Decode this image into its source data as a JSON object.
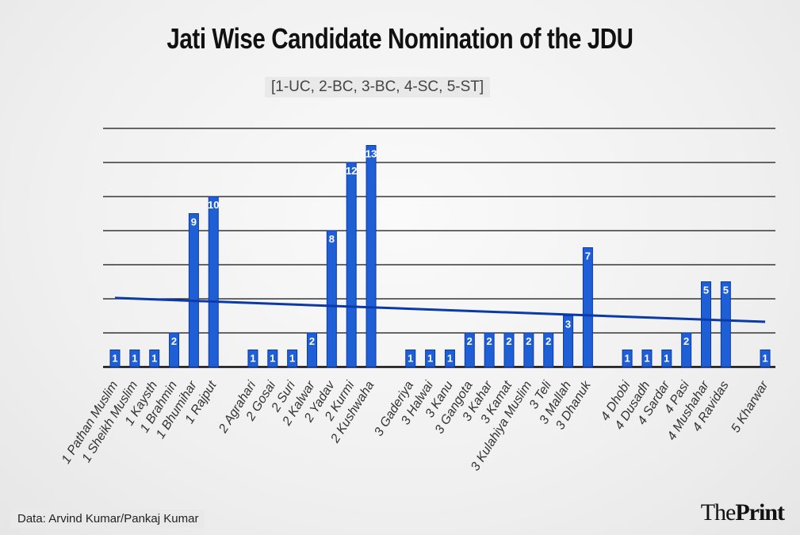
{
  "chart_data": {
    "type": "bar",
    "title": "Jati Wise Candidate Nomination of the JDU",
    "subtitle": "[1-UC, 2-BC, 3-BC, 4-SC, 5-ST]",
    "xlabel": "",
    "ylabel": "",
    "ylim": [
      0,
      14
    ],
    "grid": true,
    "trendline": {
      "start": 4.05,
      "end": 2.65
    },
    "groups": [
      {
        "categories": [
          "1 Pathan Muslim",
          "1 Sheikh Muslim",
          "1 Kaysth",
          "1 Brahmin",
          "1 Bhumihar",
          "1 Rajput"
        ],
        "values": [
          1,
          1,
          1,
          2,
          9,
          10
        ]
      },
      {
        "categories": [
          "2 Agrahari",
          "2 Gosai",
          "2 Suri",
          "2 Kalwar",
          "2 Yadav",
          "2 Kurmi",
          "2 Kushwaha"
        ],
        "values": [
          1,
          1,
          1,
          2,
          8,
          12,
          13
        ]
      },
      {
        "categories": [
          "3 Gaderiya",
          "3 Halwai",
          "3 Kanu",
          "3 Gangota",
          "3 Kahar",
          "3 Kamat",
          "3 Kulahiya Muslim",
          "3 Teli",
          "3 Mallah",
          "3 Dhanuk"
        ],
        "values": [
          1,
          1,
          1,
          2,
          2,
          2,
          2,
          2,
          3,
          7
        ]
      },
      {
        "categories": [
          "4 Dhobi",
          "4 Dusadh",
          "4 Sardar",
          "4 Pasi",
          "4 Mushahar",
          "4 Ravidas"
        ],
        "values": [
          1,
          1,
          1,
          2,
          5,
          5
        ]
      },
      {
        "categories": [
          "5 Kharwar"
        ],
        "values": [
          1
        ]
      }
    ],
    "colors": {
      "bar": "#1f5fd6",
      "bar_dark": "#0b3aa8",
      "trend": "#0b3aa8",
      "grid": "#111111"
    }
  },
  "footer": {
    "source": "Data: Arvind Kumar/Pankaj Kumar",
    "logo_the": "The",
    "logo_print": "Print"
  }
}
